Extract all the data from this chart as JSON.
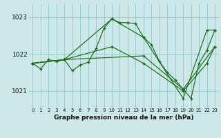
{
  "title": "Graphe pression niveau de la mer (hPa)",
  "bg_color": "#cce8e8",
  "grid_color": "#99cccc",
  "line_color": "#1a6b1a",
  "xlim": [
    -0.5,
    23.5
  ],
  "ylim": [
    1020.55,
    1023.35
  ],
  "yticks": [
    1021,
    1022,
    1023
  ],
  "xticks": [
    0,
    1,
    2,
    3,
    4,
    5,
    6,
    7,
    8,
    9,
    10,
    11,
    12,
    13,
    14,
    15,
    16,
    17,
    18,
    19,
    20,
    21,
    22,
    23
  ],
  "series1_x": [
    0,
    1,
    2,
    3,
    4,
    5,
    6,
    7,
    8,
    9,
    10,
    11,
    12,
    13,
    14,
    15,
    16,
    17,
    18,
    19,
    20,
    21,
    22,
    23
  ],
  "series1_y": [
    1021.75,
    1021.6,
    1021.85,
    1021.8,
    1021.85,
    1021.55,
    1021.7,
    1021.78,
    1022.15,
    1022.7,
    1022.95,
    1022.85,
    1022.85,
    1022.82,
    1022.45,
    1022.25,
    1021.8,
    1021.5,
    1021.3,
    1021.05,
    1020.8,
    1021.75,
    1022.1,
    1022.65
  ],
  "series2_x": [
    0,
    4,
    10,
    14,
    19,
    22,
    23
  ],
  "series2_y": [
    1021.75,
    1021.85,
    1022.95,
    1022.45,
    1020.8,
    1022.65,
    1022.65
  ],
  "series3_x": [
    0,
    4,
    10,
    14,
    19,
    22,
    23
  ],
  "series3_y": [
    1021.75,
    1021.85,
    1022.2,
    1021.75,
    1021.0,
    1021.75,
    1022.2
  ],
  "series4_x": [
    0,
    4,
    14,
    19,
    23
  ],
  "series4_y": [
    1021.75,
    1021.85,
    1021.95,
    1021.05,
    1022.2
  ]
}
